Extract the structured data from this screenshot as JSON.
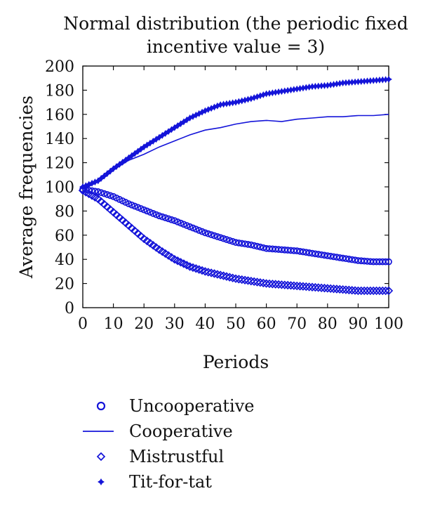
{
  "chart_data": {
    "type": "line",
    "title_lines": [
      "Normal distribution (the periodic fixed",
      "incentive value = 3)"
    ],
    "xlabel": "Periods",
    "ylabel": "Average frequencies",
    "xlim": [
      0,
      100
    ],
    "ylim": [
      0,
      200
    ],
    "x_ticks": [
      0,
      10,
      20,
      30,
      40,
      50,
      60,
      70,
      80,
      90,
      100
    ],
    "y_ticks": [
      0,
      20,
      40,
      60,
      80,
      100,
      120,
      140,
      160,
      180,
      200
    ],
    "grid": false,
    "legend_position": "below",
    "color": "#1414d9",
    "x": [
      0,
      5,
      10,
      15,
      20,
      25,
      30,
      35,
      40,
      45,
      50,
      55,
      60,
      65,
      70,
      75,
      80,
      85,
      90,
      95,
      100
    ],
    "series": [
      {
        "name": "Uncooperative",
        "marker": "circle",
        "values": [
          98,
          96,
          92,
          86,
          81,
          76,
          72,
          67,
          62,
          58,
          54,
          52,
          49,
          48,
          47,
          45,
          43,
          41,
          39,
          38,
          38
        ]
      },
      {
        "name": "Cooperative",
        "marker": "line",
        "values": [
          98,
          104,
          114,
          122,
          127,
          133,
          138,
          143,
          147,
          149,
          152,
          154,
          155,
          154,
          156,
          157,
          158,
          158,
          159,
          159,
          160
        ]
      },
      {
        "name": "Mistrustful",
        "marker": "diamond",
        "values": [
          97,
          90,
          79,
          68,
          57,
          48,
          40,
          34,
          30,
          27,
          24,
          22,
          20,
          19,
          18,
          17,
          16,
          15,
          14,
          14,
          14
        ]
      },
      {
        "name": "Tit-for-tat",
        "marker": "star",
        "values": [
          100,
          105,
          115,
          124,
          133,
          141,
          149,
          157,
          163,
          168,
          170,
          173,
          177,
          179,
          181,
          183,
          184,
          186,
          187,
          188,
          189
        ]
      }
    ]
  }
}
